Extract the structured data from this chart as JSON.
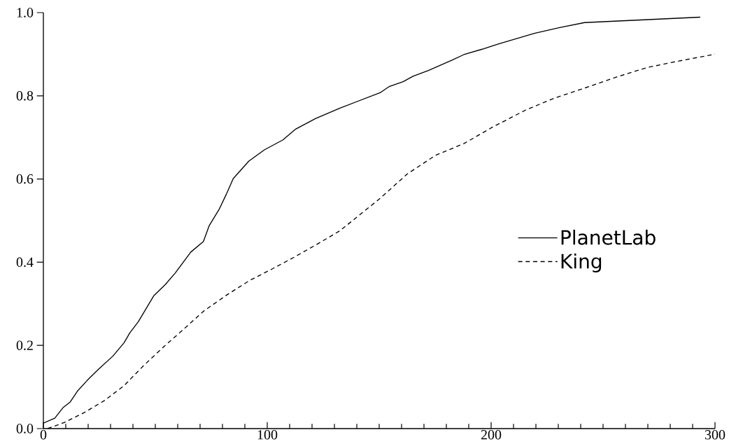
{
  "chart_data": {
    "type": "line",
    "xlim": [
      0,
      300
    ],
    "ylim": [
      0,
      1
    ],
    "xticks": [
      0,
      {
        "value": 10,
        "label": null
      },
      {
        "value": 20,
        "label": null
      },
      {
        "value": 30,
        "label": null
      },
      {
        "value": 40,
        "label": null
      },
      {
        "value": 50,
        "label": null
      },
      {
        "value": 60,
        "label": null
      },
      {
        "value": 70,
        "label": null
      },
      {
        "value": 80,
        "label": null
      },
      {
        "value": 90,
        "label": null
      },
      100,
      {
        "value": 110,
        "label": null
      },
      {
        "value": 120,
        "label": null
      },
      {
        "value": 130,
        "label": null
      },
      {
        "value": 140,
        "label": null
      },
      {
        "value": 150,
        "label": null
      },
      {
        "value": 160,
        "label": null
      },
      {
        "value": 170,
        "label": null
      },
      {
        "value": 180,
        "label": null
      },
      {
        "value": 190,
        "label": null
      },
      200,
      {
        "value": 210,
        "label": null
      },
      {
        "value": 220,
        "label": null
      },
      {
        "value": 230,
        "label": null
      },
      {
        "value": 240,
        "label": null
      },
      {
        "value": 250,
        "label": null
      },
      {
        "value": 260,
        "label": null
      },
      {
        "value": 270,
        "label": null
      },
      {
        "value": 280,
        "label": null
      },
      {
        "value": 290,
        "label": null
      },
      300
    ],
    "yticks": [
      {
        "value": 0,
        "label": "0.0"
      },
      {
        "value": 0.2,
        "label": "0.2"
      },
      {
        "value": 0.4,
        "label": "0.4"
      },
      {
        "value": 0.6,
        "label": "0.6"
      },
      {
        "value": 0.8,
        "label": "0.8"
      },
      {
        "value": 1,
        "label": "1.0"
      }
    ],
    "grid": false,
    "legend": "right",
    "marker": "none",
    "series": [
      {
        "name": "PlanetLab",
        "color": "#000000",
        "line_style": "solid",
        "x": [
          0,
          5.1,
          8.9,
          12,
          15.2,
          19.6,
          24.7,
          31,
          36,
          38.6,
          42.4,
          49.4,
          54.4,
          58.9,
          65.8,
          71.5,
          74,
          78.5,
          81.6,
          84.8,
          91.8,
          98.7,
          107,
          112.7,
          121.5,
          132.3,
          150.6,
          154.4,
          160.7,
          165.1,
          172,
          182.7,
          187.8,
          196,
          202.9,
          219.3,
          230.6,
          241.7,
          293.4
        ],
        "values": [
          0.013,
          0.025,
          0.051,
          0.064,
          0.09,
          0.116,
          0.143,
          0.174,
          0.206,
          0.23,
          0.257,
          0.32,
          0.346,
          0.374,
          0.424,
          0.45,
          0.487,
          0.527,
          0.562,
          0.601,
          0.643,
          0.67,
          0.694,
          0.72,
          0.745,
          0.77,
          0.808,
          0.822,
          0.834,
          0.847,
          0.861,
          0.886,
          0.899,
          0.912,
          0.924,
          0.95,
          0.964,
          0.976,
          0.989
        ]
      },
      {
        "name": "King",
        "color": "#000000",
        "line_style": "dashed",
        "x": [
          1.9,
          9.5,
          18.4,
          27.2,
          36,
          44.9,
          53.8,
          62.7,
          71.5,
          81.6,
          91.8,
          101.9,
          112,
          122.2,
          132.3,
          150.1,
          162.5,
          175.2,
          187.8,
          200.4,
          215.5,
          228.1,
          242,
          257.1,
          269.7,
          282.3,
          300
        ],
        "values": [
          0,
          0.015,
          0.039,
          0.067,
          0.103,
          0.152,
          0.197,
          0.239,
          0.282,
          0.32,
          0.355,
          0.383,
          0.412,
          0.443,
          0.475,
          0.552,
          0.612,
          0.657,
          0.685,
          0.724,
          0.766,
          0.794,
          0.819,
          0.847,
          0.868,
          0.882,
          0.9
        ]
      }
    ]
  }
}
